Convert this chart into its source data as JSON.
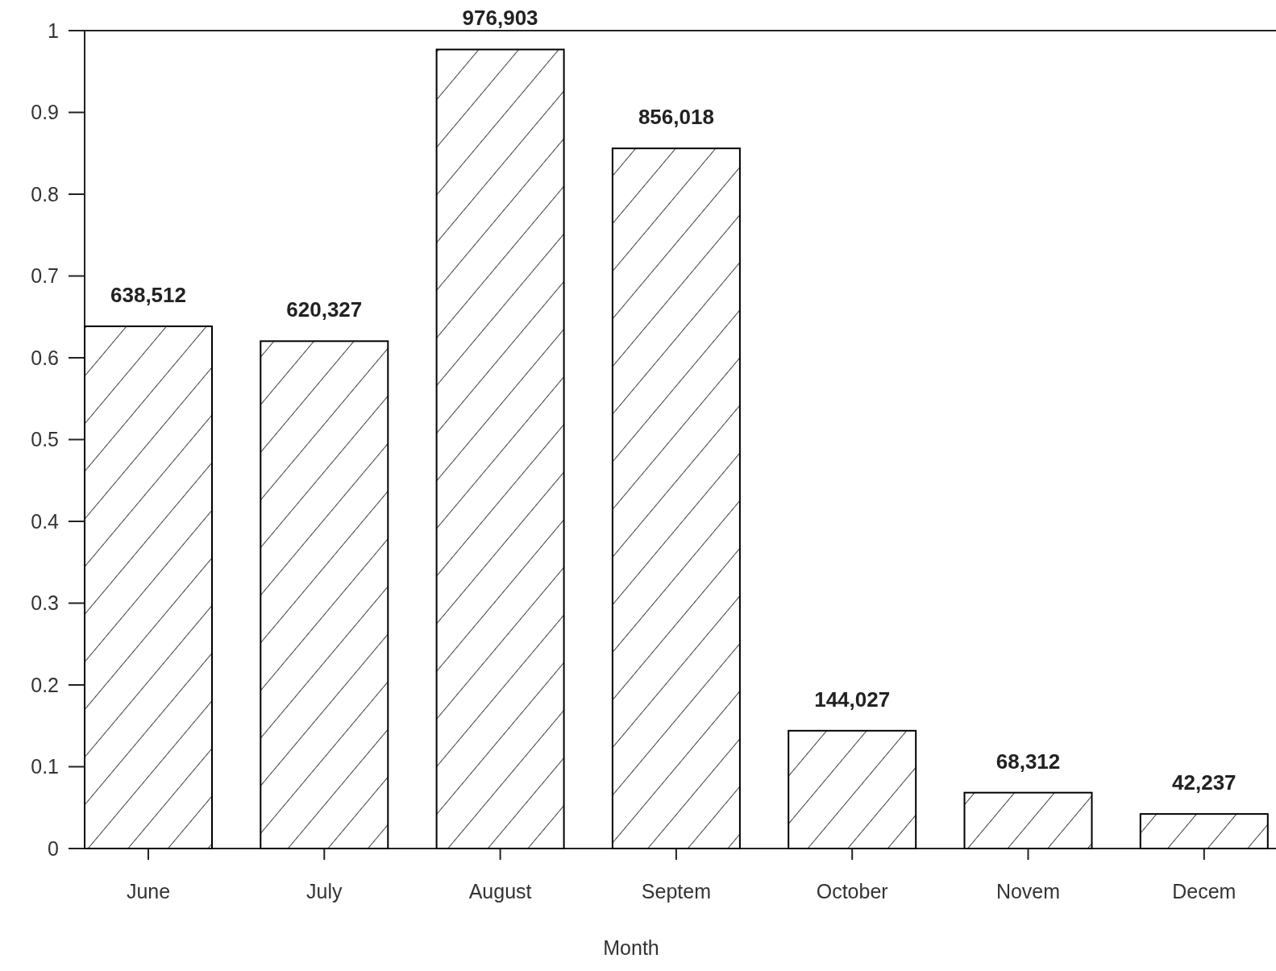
{
  "chart_data": {
    "type": "bar",
    "xlabel": "Month",
    "categories": [
      "June",
      "July",
      "August",
      "Septem",
      "October",
      "Novem",
      "Decem"
    ],
    "values": [
      0.638512,
      0.620327,
      0.976903,
      0.856018,
      0.144027,
      0.068312,
      0.042237
    ],
    "annotations": [
      {
        "text": "638,512",
        "x": "June",
        "y": 0.638512
      },
      {
        "text": "620,327",
        "x": "July",
        "y": 0.620327
      },
      {
        "text": "976,903",
        "x": "August",
        "y": 0.976903
      },
      {
        "text": "856,018",
        "x": "Septem",
        "y": 0.856018
      },
      {
        "text": "144,027",
        "x": "October",
        "y": 0.144027
      },
      {
        "text": "68,312",
        "x": "Novem",
        "y": 0.068312
      },
      {
        "text": "42,237",
        "x": "Decem",
        "y": 0.042237
      }
    ],
    "color": "#000000",
    "ylim": [
      0,
      1
    ],
    "yticks": [
      0,
      0.1,
      0.2,
      0.3,
      0.4,
      0.5,
      0.6,
      0.7,
      0.8,
      0.9,
      1
    ]
  }
}
